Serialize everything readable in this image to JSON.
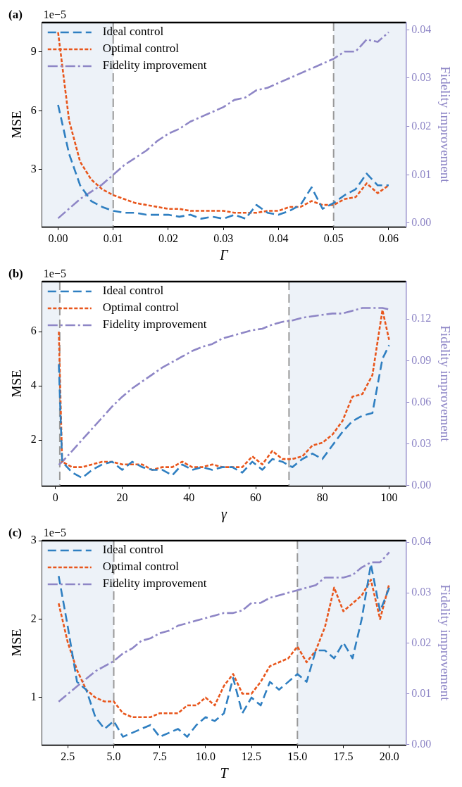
{
  "chart_data": [
    {
      "type": "line",
      "title": "(a)",
      "xlabel": "Γ",
      "ylabel": "MSE",
      "y2label": "Fidelity improvement",
      "annotations": [
        "1e−5"
      ],
      "legend": "top left",
      "grid": false,
      "marker": "none",
      "x": [
        0,
        0.002,
        0.004,
        0.006,
        0.008,
        0.01,
        0.012,
        0.014,
        0.016,
        0.018,
        0.02,
        0.022,
        0.024,
        0.026,
        0.028,
        0.03,
        0.032,
        0.034,
        0.036,
        0.038,
        0.04,
        0.042,
        0.044,
        0.046,
        0.048,
        0.05,
        0.052,
        0.054,
        0.056,
        0.058,
        0.06
      ],
      "series": [
        {
          "name": "Ideal control",
          "color": "#2f7fc1",
          "line_style": "dashed",
          "values": [
            6.3,
            3.8,
            2.2,
            1.4,
            1.1,
            0.9,
            0.8,
            0.8,
            0.7,
            0.7,
            0.7,
            0.6,
            0.7,
            0.5,
            0.6,
            0.5,
            0.7,
            0.5,
            1.2,
            0.8,
            0.7,
            0.9,
            1.2,
            2.1,
            1.0,
            1.3,
            1.7,
            2.0,
            2.8,
            2.2,
            2.2
          ]
        },
        {
          "name": "Optimal control",
          "color": "#e8561c",
          "line_style": "dotted",
          "values": [
            10.0,
            5.5,
            3.4,
            2.5,
            2.0,
            1.7,
            1.5,
            1.3,
            1.2,
            1.1,
            1.0,
            1.0,
            0.9,
            0.9,
            0.9,
            0.9,
            0.8,
            0.8,
            0.8,
            0.9,
            0.9,
            1.1,
            1.1,
            1.4,
            1.2,
            1.2,
            1.5,
            1.6,
            2.3,
            1.8,
            2.2
          ]
        },
        {
          "name": "Fidelity improvement",
          "color": "#8e86c6",
          "line_style": "dashdot",
          "axis": "y2",
          "values": [
            0.001,
            0.003,
            0.005,
            0.0065,
            0.008,
            0.01,
            0.012,
            0.0135,
            0.015,
            0.017,
            0.0185,
            0.0195,
            0.021,
            0.022,
            0.023,
            0.024,
            0.0255,
            0.026,
            0.0275,
            0.028,
            0.029,
            0.03,
            0.031,
            0.032,
            0.033,
            0.034,
            0.0355,
            0.0355,
            0.038,
            0.0375,
            0.0395
          ]
        }
      ],
      "xlim": [
        -0.0029,
        0.0631
      ],
      "ylim": [
        0.1,
        10.5
      ],
      "y2lim": [
        -0.0007,
        0.0415
      ],
      "xticks": [
        {
          "value": 0,
          "label": "0.00"
        },
        {
          "value": 0.01,
          "label": "0.01"
        },
        {
          "value": 0.02,
          "label": "0.02"
        },
        {
          "value": 0.03,
          "label": "0.03"
        },
        {
          "value": 0.04,
          "label": "0.04"
        },
        {
          "value": 0.05,
          "label": "0.05"
        },
        {
          "value": 0.06,
          "label": "0.06"
        }
      ],
      "yticks": [
        3,
        6,
        9
      ],
      "y2ticks": [
        {
          "value": 0,
          "label": "0.00"
        },
        {
          "value": 0.01,
          "label": "0.01"
        },
        {
          "value": 0.02,
          "label": "0.02"
        },
        {
          "value": 0.03,
          "label": "0.03"
        },
        {
          "value": 0.04,
          "label": "0.04"
        }
      ],
      "bands": [
        {
          "axis": "x",
          "from": -0.0029,
          "to": 0.01,
          "color": "#edf2f8"
        },
        {
          "axis": "x",
          "from": 0.05,
          "to": 0.0631,
          "color": "#edf2f8"
        }
      ],
      "ref_lines": [
        {
          "axis": "x",
          "value": 0.01,
          "color": "#999999",
          "line_style": "dashed"
        },
        {
          "axis": "x",
          "value": 0.05,
          "color": "#999999",
          "line_style": "dashed"
        }
      ]
    },
    {
      "type": "line",
      "title": "(b)",
      "xlabel": "γ",
      "ylabel": "MSE",
      "y2label": "Fidelity improvement",
      "annotations": [
        "1e−5"
      ],
      "legend": "top left",
      "grid": false,
      "marker": "none",
      "x": [
        1,
        2,
        5,
        8,
        11,
        14,
        17,
        20,
        23,
        26,
        29,
        32,
        35,
        38,
        41,
        44,
        47,
        50,
        53,
        56,
        59,
        62,
        65,
        68,
        71,
        74,
        77,
        80,
        83,
        86,
        89,
        92,
        95,
        98,
        100
      ],
      "series": [
        {
          "name": "Ideal control",
          "color": "#2f7fc1",
          "line_style": "dashed",
          "values": [
            4.8,
            1.2,
            0.8,
            0.6,
            0.9,
            1.1,
            1.2,
            0.9,
            1.2,
            1.0,
            0.9,
            0.9,
            0.7,
            1.1,
            0.9,
            1.0,
            0.9,
            1.0,
            1.0,
            0.8,
            1.2,
            0.9,
            1.3,
            1.2,
            1.0,
            1.3,
            1.5,
            1.3,
            1.8,
            2.3,
            2.7,
            2.9,
            3.0,
            5.0,
            5.5
          ]
        },
        {
          "name": "Optimal control",
          "color": "#e8561c",
          "line_style": "dotted",
          "values": [
            6.0,
            1.2,
            1.0,
            1.0,
            1.1,
            1.2,
            1.2,
            1.1,
            1.1,
            1.1,
            0.9,
            1.0,
            1.0,
            1.2,
            1.0,
            1.0,
            1.1,
            1.0,
            1.0,
            1.0,
            1.4,
            1.1,
            1.6,
            1.3,
            1.3,
            1.4,
            1.8,
            1.9,
            2.2,
            2.7,
            3.6,
            3.7,
            4.4,
            6.8,
            5.7
          ]
        },
        {
          "name": "Fidelity improvement",
          "color": "#8e86c6",
          "line_style": "dashdot",
          "axis": "y2",
          "values": [
            0.015,
            0.017,
            0.025,
            0.033,
            0.041,
            0.049,
            0.057,
            0.064,
            0.07,
            0.075,
            0.08,
            0.085,
            0.089,
            0.093,
            0.097,
            0.1,
            0.102,
            0.106,
            0.108,
            0.11,
            0.112,
            0.113,
            0.116,
            0.118,
            0.119,
            0.121,
            0.122,
            0.123,
            0.124,
            0.124,
            0.126,
            0.128,
            0.128,
            0.128,
            0.127
          ]
        }
      ],
      "xlim": [
        -4,
        105
      ],
      "ylim": [
        0.32,
        7.85
      ],
      "y2lim": [
        0,
        0.147
      ],
      "xticks": [
        0,
        20,
        40,
        60,
        80,
        100
      ],
      "yticks": [
        2,
        4,
        6
      ],
      "y2ticks": [
        {
          "value": 0,
          "label": "0.00"
        },
        {
          "value": 0.03,
          "label": "0.03"
        },
        {
          "value": 0.06,
          "label": "0.06"
        },
        {
          "value": 0.09,
          "label": "0.09"
        },
        {
          "value": 0.12,
          "label": "0.12"
        }
      ],
      "bands": [
        {
          "axis": "x",
          "from": -4,
          "to": 1.3,
          "color": "#edf2f8"
        },
        {
          "axis": "x",
          "from": 70,
          "to": 105,
          "color": "#edf2f8"
        }
      ],
      "ref_lines": [
        {
          "axis": "x",
          "value": 1.3,
          "color": "#999999",
          "line_style": "dashed"
        },
        {
          "axis": "x",
          "value": 70,
          "color": "#999999",
          "line_style": "dashed"
        }
      ]
    },
    {
      "type": "line",
      "title": "(c)",
      "xlabel": "T",
      "ylabel": "MSE",
      "y2label": "Fidelity improvement",
      "annotations": [
        "1e−5"
      ],
      "legend": "top left",
      "grid": false,
      "marker": "none",
      "x": [
        2,
        2.5,
        3,
        3.5,
        4,
        4.5,
        5,
        5.5,
        6,
        6.5,
        7,
        7.5,
        8,
        8.5,
        9,
        9.5,
        10,
        10.5,
        11,
        11.5,
        12,
        12.5,
        13,
        13.5,
        14,
        14.5,
        15,
        15.5,
        16,
        16.5,
        17,
        17.5,
        18,
        18.5,
        19,
        19.5,
        20
      ],
      "series": [
        {
          "name": "Ideal control",
          "color": "#2f7fc1",
          "line_style": "dashed",
          "values": [
            2.55,
            1.9,
            1.2,
            1.1,
            0.75,
            0.6,
            0.7,
            0.5,
            0.55,
            0.6,
            0.65,
            0.5,
            0.55,
            0.6,
            0.5,
            0.65,
            0.75,
            0.7,
            0.8,
            1.25,
            0.8,
            1.0,
            0.9,
            1.2,
            1.1,
            1.2,
            1.3,
            1.2,
            1.6,
            1.6,
            1.5,
            1.7,
            1.5,
            2.0,
            2.7,
            2.1,
            2.4
          ]
        },
        {
          "name": "Optimal control",
          "color": "#e8561c",
          "line_style": "dotted",
          "values": [
            2.2,
            1.7,
            1.35,
            1.1,
            1.0,
            0.95,
            0.95,
            0.8,
            0.75,
            0.75,
            0.75,
            0.8,
            0.8,
            0.8,
            0.9,
            0.9,
            1.0,
            0.9,
            1.15,
            1.3,
            1.05,
            1.05,
            1.2,
            1.4,
            1.45,
            1.5,
            1.65,
            1.45,
            1.6,
            1.9,
            2.4,
            2.1,
            2.2,
            2.3,
            2.5,
            2.0,
            2.45
          ]
        },
        {
          "name": "Fidelity improvement",
          "color": "#8e86c6",
          "line_style": "dashdot",
          "axis": "y2",
          "values": [
            0.0085,
            0.01,
            0.0115,
            0.013,
            0.0145,
            0.0155,
            0.0165,
            0.018,
            0.019,
            0.0205,
            0.021,
            0.022,
            0.0225,
            0.0235,
            0.024,
            0.0245,
            0.025,
            0.0255,
            0.026,
            0.026,
            0.0265,
            0.028,
            0.028,
            0.029,
            0.0295,
            0.03,
            0.0305,
            0.031,
            0.0315,
            0.033,
            0.033,
            0.033,
            0.0335,
            0.035,
            0.036,
            0.036,
            0.038
          ]
        }
      ],
      "xlim": [
        1.1,
        20.9
      ],
      "ylim": [
        0.4,
        3.0
      ],
      "y2lim": [
        0,
        0.0403
      ],
      "xticks": [
        2.5,
        {
          "value": 5,
          "label": "5.0"
        },
        7.5,
        {
          "value": 10,
          "label": "10.0"
        },
        12.5,
        {
          "value": 15,
          "label": "15.0"
        },
        17.5,
        {
          "value": 20,
          "label": "20.0"
        }
      ],
      "yticks": [
        1,
        2,
        3
      ],
      "y2ticks": [
        {
          "value": 0,
          "label": "0.00"
        },
        {
          "value": 0.01,
          "label": "0.01"
        },
        {
          "value": 0.02,
          "label": "0.02"
        },
        {
          "value": 0.03,
          "label": "0.03"
        },
        {
          "value": 0.04,
          "label": "0.04"
        }
      ],
      "bands": [
        {
          "axis": "x",
          "from": 1.1,
          "to": 5,
          "color": "#edf2f8"
        },
        {
          "axis": "x",
          "from": 15,
          "to": 20.9,
          "color": "#edf2f8"
        }
      ],
      "ref_lines": [
        {
          "axis": "x",
          "value": 5,
          "color": "#999999",
          "line_style": "dashed"
        },
        {
          "axis": "x",
          "value": 15,
          "color": "#999999",
          "line_style": "dashed"
        }
      ]
    }
  ]
}
